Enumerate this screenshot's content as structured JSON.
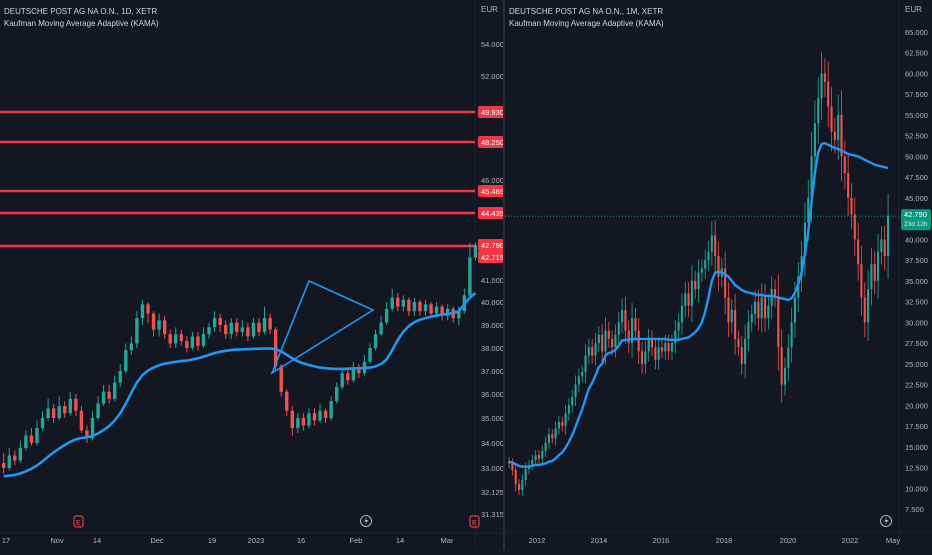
{
  "chart_data": [
    {
      "type": "candlestick",
      "title": "DEUTSCHE POST AG NA O.N., 1D, XETR",
      "indicator": "Kaufman Moving Average Adaptive (KAMA)",
      "currency": "EUR",
      "ylim": [
        31.315,
        55.2
      ],
      "yticks": [
        "54.000",
        "52.000",
        "46.000",
        "41.000",
        "40.000",
        "39.000",
        "38.000",
        "37.000",
        "36.000",
        "35.000",
        "34.000",
        "33.000",
        "32.125",
        "31.315"
      ],
      "xticks": [
        "17",
        "Nov",
        "14",
        "Dec",
        "19",
        "2023",
        "16",
        "Feb",
        "14",
        "Mar"
      ],
      "horizontal_levels": [
        49.93,
        48.25,
        45.465,
        44.435,
        42.79,
        42.715
      ],
      "level_labels": [
        "49.930",
        "48.250",
        "45.465",
        "44.435",
        "42.790",
        "42.715"
      ],
      "last_price": 42.79,
      "candles": [
        [
          33.2,
          33.0,
          33.6,
          32.8
        ],
        [
          33.0,
          33.5,
          33.8,
          32.9
        ],
        [
          33.5,
          33.3,
          33.7,
          33.1
        ],
        [
          33.3,
          33.8,
          34.1,
          33.2
        ],
        [
          33.8,
          34.3,
          34.5,
          33.7
        ],
        [
          34.3,
          34.0,
          34.6,
          33.9
        ],
        [
          34.0,
          34.6,
          34.9,
          33.9
        ],
        [
          34.6,
          35.0,
          35.3,
          34.5
        ],
        [
          35.0,
          35.4,
          35.8,
          34.9
        ],
        [
          35.4,
          35.0,
          35.6,
          34.8
        ],
        [
          35.0,
          35.5,
          35.9,
          34.9
        ],
        [
          35.5,
          35.2,
          35.7,
          35.0
        ],
        [
          35.2,
          35.8,
          36.1,
          35.1
        ],
        [
          35.8,
          35.3,
          36.0,
          35.1
        ],
        [
          35.3,
          34.5,
          35.5,
          34.4
        ],
        [
          34.5,
          34.2,
          34.7,
          34.0
        ],
        [
          34.2,
          35.0,
          35.3,
          34.1
        ],
        [
          35.0,
          35.6,
          35.9,
          34.9
        ],
        [
          35.6,
          36.1,
          36.4,
          35.5
        ],
        [
          36.1,
          35.8,
          36.4,
          35.6
        ],
        [
          35.8,
          36.5,
          36.8,
          35.7
        ],
        [
          36.5,
          37.0,
          37.3,
          36.3
        ],
        [
          37.0,
          37.9,
          38.2,
          36.9
        ],
        [
          37.9,
          38.2,
          38.5,
          37.7
        ],
        [
          38.2,
          39.3,
          39.6,
          38.0
        ],
        [
          39.3,
          39.9,
          40.1,
          39.0
        ],
        [
          39.9,
          39.5,
          40.0,
          39.1
        ],
        [
          39.5,
          38.8,
          39.6,
          38.5
        ],
        [
          38.8,
          39.2,
          39.5,
          38.5
        ],
        [
          39.2,
          38.6,
          39.4,
          38.4
        ],
        [
          38.6,
          38.2,
          38.8,
          38.0
        ],
        [
          38.2,
          38.6,
          38.9,
          38.0
        ],
        [
          38.6,
          38.3,
          38.8,
          38.1
        ],
        [
          38.3,
          38.0,
          38.5,
          37.8
        ],
        [
          38.0,
          38.5,
          38.7,
          37.9
        ],
        [
          38.5,
          38.1,
          38.7,
          37.9
        ],
        [
          38.1,
          38.6,
          38.9,
          38.0
        ],
        [
          38.6,
          38.9,
          39.1,
          38.4
        ],
        [
          38.9,
          39.3,
          39.6,
          38.7
        ],
        [
          39.3,
          39.0,
          39.5,
          38.7
        ],
        [
          39.0,
          38.6,
          39.2,
          38.4
        ],
        [
          38.6,
          39.1,
          39.3,
          38.4
        ],
        [
          39.1,
          38.7,
          39.3,
          38.5
        ],
        [
          38.7,
          38.9,
          39.2,
          38.5
        ],
        [
          38.9,
          38.5,
          39.1,
          38.3
        ],
        [
          38.5,
          39.1,
          39.3,
          38.4
        ],
        [
          39.1,
          38.7,
          39.3,
          38.5
        ],
        [
          38.7,
          39.3,
          39.8,
          38.6
        ],
        [
          39.3,
          38.8,
          39.5,
          38.6
        ],
        [
          38.8,
          37.2,
          38.9,
          37.0
        ],
        [
          37.2,
          36.1,
          37.3,
          35.9
        ],
        [
          36.1,
          35.3,
          36.2,
          35.1
        ],
        [
          35.3,
          34.6,
          35.5,
          34.3
        ],
        [
          34.6,
          35.0,
          35.2,
          34.4
        ],
        [
          35.0,
          34.7,
          35.2,
          34.5
        ],
        [
          34.7,
          35.2,
          35.4,
          34.6
        ],
        [
          35.2,
          34.9,
          35.4,
          34.7
        ],
        [
          34.9,
          35.3,
          35.6,
          34.8
        ],
        [
          35.3,
          35.0,
          35.4,
          34.8
        ],
        [
          35.0,
          35.7,
          35.9,
          34.9
        ],
        [
          35.7,
          36.3,
          36.5,
          35.6
        ],
        [
          36.3,
          36.9,
          37.1,
          36.2
        ],
        [
          36.9,
          36.6,
          37.1,
          36.4
        ],
        [
          36.6,
          37.1,
          37.4,
          36.5
        ],
        [
          37.1,
          36.9,
          37.3,
          36.7
        ],
        [
          36.9,
          37.4,
          37.7,
          36.8
        ],
        [
          37.4,
          38.0,
          38.2,
          37.3
        ],
        [
          38.0,
          38.6,
          38.8,
          37.9
        ],
        [
          38.6,
          39.1,
          39.4,
          38.5
        ],
        [
          39.1,
          39.7,
          40.0,
          39.0
        ],
        [
          39.7,
          40.2,
          40.6,
          39.6
        ],
        [
          40.2,
          39.8,
          40.4,
          39.6
        ],
        [
          39.8,
          40.1,
          40.3,
          39.6
        ],
        [
          40.1,
          39.6,
          40.2,
          39.4
        ],
        [
          39.6,
          40.0,
          40.2,
          39.4
        ],
        [
          40.0,
          39.6,
          40.1,
          39.4
        ],
        [
          39.6,
          39.9,
          40.1,
          39.4
        ],
        [
          39.9,
          39.5,
          40.0,
          39.3
        ],
        [
          39.5,
          39.8,
          40.0,
          39.3
        ],
        [
          39.8,
          39.4,
          39.9,
          39.2
        ],
        [
          39.4,
          39.7,
          39.9,
          39.2
        ],
        [
          39.7,
          39.3,
          39.8,
          39.1
        ],
        [
          39.3,
          39.6,
          39.8,
          39.0
        ],
        [
          39.6,
          40.3,
          40.6,
          39.5
        ],
        [
          40.3,
          42.6,
          42.9,
          40.2
        ],
        [
          42.6,
          42.79,
          42.9,
          42.4
        ]
      ],
      "kama": [
        32.7,
        32.72,
        32.75,
        32.8,
        32.88,
        32.97,
        33.1,
        33.27,
        33.45,
        33.62,
        33.78,
        33.92,
        34.05,
        34.15,
        34.2,
        34.23,
        34.28,
        34.38,
        34.52,
        34.68,
        34.9,
        35.2,
        35.6,
        36.05,
        36.5,
        36.82,
        37.02,
        37.15,
        37.25,
        37.32,
        37.36,
        37.4,
        37.43,
        37.45,
        37.5,
        37.55,
        37.62,
        37.7,
        37.78,
        37.84,
        37.88,
        37.91,
        37.93,
        37.94,
        37.95,
        37.96,
        37.97,
        37.98,
        37.98,
        37.95,
        37.85,
        37.7,
        37.55,
        37.42,
        37.33,
        37.26,
        37.2,
        37.15,
        37.12,
        37.1,
        37.09,
        37.09,
        37.1,
        37.11,
        37.12,
        37.13,
        37.15,
        37.2,
        37.3,
        37.5,
        37.9,
        38.35,
        38.7,
        38.95,
        39.12,
        39.23,
        39.3,
        39.36,
        39.41,
        39.45,
        39.48,
        39.52,
        39.6,
        39.9,
        40.2,
        40.4
      ]
    },
    {
      "type": "candlestick",
      "title": "DEUTSCHE POST AG NA O.N., 1M, XETR",
      "indicator": "Kaufman Moving Average Adaptive (KAMA)",
      "currency": "EUR",
      "ylim": [
        5.0,
        67.5
      ],
      "yticks": [
        "65.000",
        "62.500",
        "60.000",
        "57.500",
        "55.000",
        "52.500",
        "50.000",
        "47.500",
        "45.000",
        "42.500",
        "40.000",
        "37.500",
        "35.000",
        "32.500",
        "30.000",
        "27.500",
        "25.000",
        "22.500",
        "20.000",
        "17.500",
        "15.000",
        "12.500",
        "10.000",
        "7.500"
      ],
      "xticks": [
        "2012",
        "2014",
        "2016",
        "2018",
        "2020",
        "2022",
        "May"
      ],
      "last_price": 42.79,
      "price_label": "42.790",
      "time_label": "23d 12h",
      "closes": [
        13.0,
        12.2,
        10.5,
        9.8,
        11.0,
        12.3,
        12.8,
        13.4,
        14.0,
        13.6,
        14.5,
        15.5,
        16.5,
        16.0,
        17.2,
        18.0,
        17.5,
        19.0,
        20.0,
        21.0,
        22.5,
        23.5,
        24.0,
        26.0,
        27.0,
        26.0,
        27.5,
        28.5,
        26.5,
        29.0,
        28.0,
        27.0,
        28.5,
        30.0,
        31.5,
        29.0,
        27.5,
        30.5,
        29.0,
        26.5,
        25.0,
        26.5,
        28.0,
        27.0,
        25.5,
        27.0,
        26.5,
        27.5,
        26.5,
        27.5,
        29.0,
        30.0,
        32.0,
        33.5,
        32.0,
        35.0,
        34.0,
        36.0,
        36.5,
        37.5,
        38.5,
        40.5,
        38.0,
        35.5,
        36.5,
        33.0,
        30.0,
        31.5,
        28.0,
        27.0,
        25.0,
        28.0,
        30.0,
        31.0,
        32.5,
        30.5,
        33.0,
        30.5,
        32.0,
        34.0,
        33.0,
        27.0,
        22.5,
        24.5,
        27.0,
        30.0,
        33.0,
        35.5,
        38.0,
        42.0,
        45.0,
        50.0,
        54.0,
        57.0,
        60.0,
        59.0,
        56.0,
        53.0,
        52.0,
        55.0,
        50.0,
        48.0,
        45.0,
        43.0,
        40.0,
        37.0,
        33.0,
        30.0,
        34.0,
        37.0,
        35.0,
        38.5,
        40.0,
        38.0,
        42.79
      ],
      "kama": [
        13.2,
        13.1,
        12.9,
        12.7,
        12.6,
        12.6,
        12.6,
        12.7,
        12.8,
        12.8,
        12.9,
        13.0,
        13.2,
        13.3,
        13.6,
        14.0,
        14.3,
        14.9,
        15.6,
        16.4,
        17.4,
        18.5,
        19.5,
        20.8,
        22.0,
        22.7,
        23.6,
        24.6,
        25.0,
        26.0,
        26.3,
        26.4,
        26.7,
        27.2,
        27.8,
        27.9,
        27.9,
        28.0,
        28.0,
        28.0,
        28.0,
        28.0,
        28.0,
        28.0,
        28.0,
        28.0,
        28.0,
        28.0,
        27.9,
        27.9,
        27.9,
        27.9,
        28.0,
        28.1,
        28.2,
        28.5,
        28.8,
        29.3,
        30.0,
        31.3,
        33.0,
        35.0,
        36.0,
        36.1,
        36.0,
        35.8,
        35.5,
        35.0,
        34.5,
        34.2,
        33.9,
        33.7,
        33.6,
        33.5,
        33.4,
        33.3,
        33.3,
        33.2,
        33.2,
        33.2,
        33.1,
        33.0,
        32.9,
        32.8,
        32.7,
        32.9,
        33.6,
        34.6,
        36.0,
        38.2,
        41.0,
        44.5,
        48.0,
        50.5,
        51.5,
        51.6,
        51.4,
        51.2,
        51.0,
        50.9,
        50.7,
        50.5,
        50.3,
        50.2,
        50.1,
        50.0,
        49.8,
        49.6,
        49.4,
        49.2,
        49.0,
        48.9,
        48.8,
        48.7,
        48.6
      ]
    }
  ],
  "colors": {
    "background": "#131722",
    "bull": "#26a69a",
    "bear": "#ef5350",
    "kama": "#2196f3",
    "level": "#f23645",
    "text": "#b2b5be",
    "accent": "#089981",
    "grid": "#1e222d"
  },
  "icons": {
    "earnings_marker": "earnings-icon",
    "bolt_marker": "bolt-icon"
  }
}
